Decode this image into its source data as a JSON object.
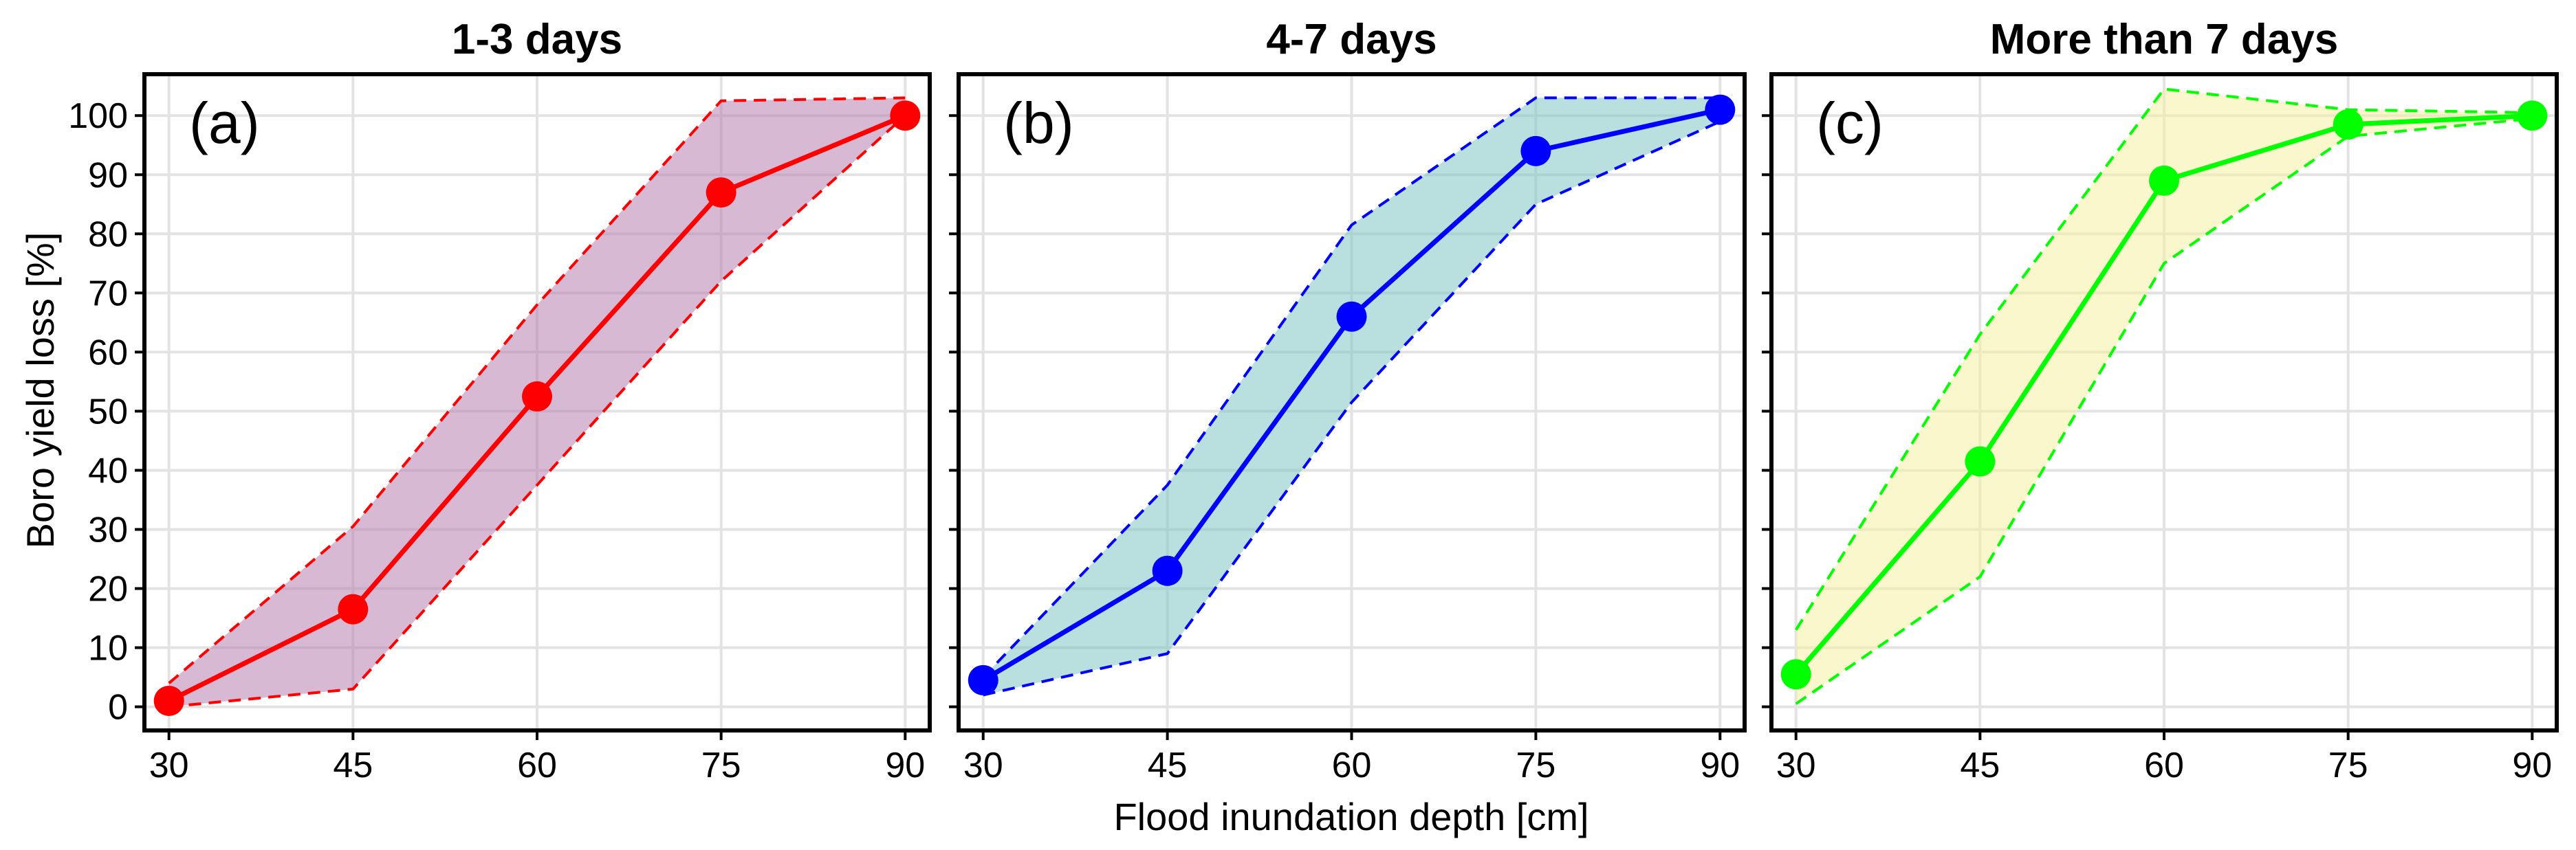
{
  "axes": {
    "ylabel": "Boro yield loss [%]",
    "xlabel": "Flood inundation depth [cm]"
  },
  "chart_data": [
    {
      "type": "line",
      "title": "1-3 days",
      "panel_label": "(a)",
      "color": "#ff0000",
      "fill": "#b87fb0",
      "x": [
        30,
        45,
        60,
        75,
        90
      ],
      "y": [
        1,
        16.5,
        52.5,
        87,
        100
      ],
      "upper": [
        4,
        30.5,
        68,
        102.5,
        103
      ],
      "lower": [
        0,
        3,
        37.5,
        72,
        100
      ],
      "xticks": [
        30,
        45,
        60,
        75,
        90
      ],
      "yticks": [
        0,
        10,
        20,
        30,
        40,
        50,
        60,
        70,
        80,
        90,
        100
      ],
      "xlim": [
        28,
        92
      ],
      "ylim": [
        -4,
        107
      ],
      "grid": true
    },
    {
      "type": "line",
      "title": "4-7 days",
      "panel_label": "(b)",
      "color": "#0000ff",
      "fill": "#7fc4c4",
      "x": [
        30,
        45,
        60,
        75,
        90
      ],
      "y": [
        4.5,
        23,
        66,
        94,
        101
      ],
      "upper": [
        5,
        37.5,
        81.5,
        103,
        103
      ],
      "lower": [
        2,
        9,
        51.5,
        85,
        99
      ],
      "xticks": [
        30,
        45,
        60,
        75,
        90
      ],
      "yticks": [
        0,
        10,
        20,
        30,
        40,
        50,
        60,
        70,
        80,
        90,
        100
      ],
      "xlim": [
        28,
        92
      ],
      "ylim": [
        -4,
        107
      ],
      "grid": true
    },
    {
      "type": "line",
      "title": "More than 7 days",
      "panel_label": "(c)",
      "color": "#00ff00",
      "fill": "#f6f0a4",
      "x": [
        30,
        45,
        60,
        75,
        90
      ],
      "y": [
        5.5,
        41.5,
        89,
        98.5,
        100
      ],
      "upper": [
        13,
        63,
        104.5,
        101,
        100.5
      ],
      "lower": [
        0.5,
        22,
        75,
        96.5,
        99.5
      ],
      "xticks": [
        30,
        45,
        60,
        75,
        90
      ],
      "yticks": [
        0,
        10,
        20,
        30,
        40,
        50,
        60,
        70,
        80,
        90,
        100
      ],
      "xlim": [
        28,
        92
      ],
      "ylim": [
        -4,
        107
      ],
      "grid": true
    }
  ]
}
